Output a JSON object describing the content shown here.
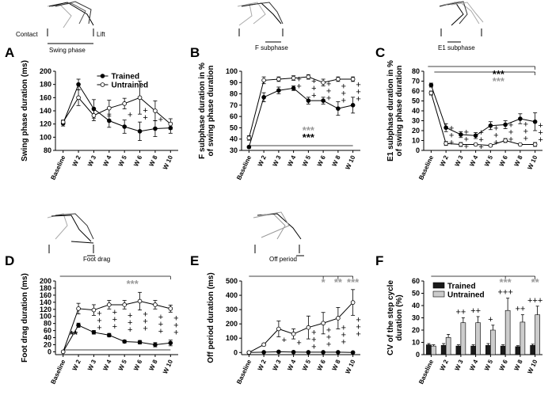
{
  "chart_data": [
    {
      "panel": "A",
      "type": "line",
      "ylabel": [
        "Swing phase duration (ms)"
      ],
      "categories": [
        "Baseline",
        "W 2",
        "W 3",
        "W 4",
        "W 5",
        "W 6",
        "W 8",
        "W 10"
      ],
      "series": [
        {
          "name": "Trained",
          "color": "#000000",
          "values": [
            121,
            180,
            143,
            125,
            116,
            109,
            113,
            114
          ],
          "errors": [
            4,
            8,
            14,
            10,
            10,
            14,
            12,
            8
          ]
        },
        {
          "name": "Untrained",
          "color": "#ffffff",
          "values": [
            123,
            160,
            133,
            144,
            151,
            160,
            140,
            120
          ],
          "errors": [
            3,
            12,
            8,
            12,
            8,
            25,
            15,
            8
          ]
        }
      ],
      "ylim": [
        80,
        200
      ],
      "yticks": [
        80,
        100,
        120,
        140,
        160,
        180,
        200
      ],
      "legend": "upper center",
      "annotations": [
        {
          "category": "W 5",
          "text": [
            "+"
          ]
        },
        {
          "category": "W 6",
          "text": [
            "+",
            "+"
          ]
        },
        {
          "category": "W 8",
          "text": [
            "+"
          ]
        }
      ],
      "significance": [],
      "illustration_labels": [
        "Contact",
        "Lift",
        "Swing phase"
      ]
    },
    {
      "panel": "B",
      "type": "line",
      "ylabel": [
        "F subphase duration in %",
        "of swing phase duration"
      ],
      "categories": [
        "Baseline",
        "W 2",
        "W 3",
        "W 4",
        "W 5",
        "W 6",
        "W 8",
        "W 10"
      ],
      "series": [
        {
          "name": "Trained",
          "color": "#000000",
          "values": [
            33,
            77,
            83,
            85,
            74,
            74,
            67,
            70
          ],
          "errors": [
            1,
            4,
            3,
            2,
            3,
            3,
            6,
            7
          ]
        },
        {
          "name": "Untrained",
          "color": "#ffffff",
          "values": [
            41,
            92,
            93,
            94,
            95,
            90,
            93,
            93
          ],
          "errors": [
            2,
            3,
            2,
            2,
            2,
            3,
            2,
            2
          ]
        }
      ],
      "ylim": [
        30,
        100
      ],
      "yticks": [
        30,
        40,
        50,
        60,
        70,
        80,
        90,
        100
      ],
      "annotations": [
        {
          "category": "W 4",
          "text": [
            "+",
            "+"
          ]
        },
        {
          "category": "W 5",
          "text": [
            "+",
            "+",
            "+"
          ]
        },
        {
          "category": "W 6",
          "text": [
            "+",
            "+",
            "+"
          ]
        },
        {
          "category": "W 8",
          "text": [
            "+",
            "+",
            "+"
          ]
        },
        {
          "category": "W 10",
          "text": [
            "+",
            "+",
            "+"
          ]
        }
      ],
      "significance": [
        {
          "text": "***",
          "color": "#999999",
          "placement": "bottom"
        },
        {
          "text": "***",
          "color": "#000000",
          "placement": "bottom"
        }
      ],
      "illustration_labels": [
        "F subphase"
      ]
    },
    {
      "panel": "C",
      "type": "line",
      "ylabel": [
        "E1 subphase duration in %",
        "of swing phase duration"
      ],
      "categories": [
        "Baseline",
        "W 2",
        "W 3",
        "W 4",
        "W 5",
        "W 6",
        "W 8",
        "W 10"
      ],
      "series": [
        {
          "name": "Trained",
          "color": "#000000",
          "values": [
            66,
            23,
            16,
            15,
            25,
            26,
            32,
            29
          ],
          "errors": [
            2,
            4,
            3,
            3,
            4,
            4,
            5,
            9
          ]
        },
        {
          "name": "Untrained",
          "color": "#ffffff",
          "values": [
            58,
            7,
            6,
            6,
            5,
            10,
            6,
            6
          ],
          "errors": [
            2,
            2,
            2,
            1,
            1,
            2,
            1,
            2
          ]
        }
      ],
      "ylim": [
        0,
        80
      ],
      "yticks": [
        0,
        10,
        20,
        30,
        40,
        50,
        60,
        70,
        80
      ],
      "annotations": [
        {
          "category": "W 2",
          "text": [
            "+",
            "+",
            "+"
          ]
        },
        {
          "category": "W 3",
          "text": [
            "+",
            "+",
            "+"
          ]
        },
        {
          "category": "W 4",
          "text": [
            "+",
            "+",
            "+"
          ]
        },
        {
          "category": "W 5",
          "text": [
            "+",
            "+",
            "+"
          ]
        },
        {
          "category": "W 6",
          "text": [
            "+",
            "+",
            "+"
          ]
        },
        {
          "category": "W 8",
          "text": [
            "+",
            "+",
            "+"
          ]
        },
        {
          "category": "W 10",
          "text": [
            "+",
            "+",
            "+"
          ]
        }
      ],
      "significance": [
        {
          "text": "***",
          "color": "#000000",
          "placement": "top"
        },
        {
          "text": "***",
          "color": "#999999",
          "placement": "top"
        }
      ],
      "illustration_labels": [
        "E1 subphase"
      ]
    },
    {
      "panel": "D",
      "type": "line",
      "ylabel": [
        "Foot drag duration (ms)"
      ],
      "categories": [
        "Baseline",
        "W 2",
        "W 3",
        "W 4",
        "W 5",
        "W 6",
        "W 8",
        "W 10"
      ],
      "series": [
        {
          "name": "Trained",
          "color": "#000000",
          "values": [
            0,
            75,
            55,
            47,
            29,
            27,
            20,
            25
          ],
          "errors": [
            0,
            6,
            5,
            5,
            4,
            5,
            6,
            8
          ]
        },
        {
          "name": "Untrained",
          "color": "#ffffff",
          "values": [
            0,
            122,
            118,
            133,
            133,
            143,
            133,
            122
          ],
          "errors": [
            0,
            15,
            15,
            12,
            12,
            25,
            12,
            10
          ]
        }
      ],
      "ylim": [
        -8,
        200
      ],
      "yticks": [
        0,
        20,
        40,
        60,
        80,
        100,
        120,
        140,
        160,
        180,
        200
      ],
      "annotations": [
        {
          "category": "W 3",
          "text": [
            "+",
            "+",
            "+"
          ]
        },
        {
          "category": "W 4",
          "text": [
            "+",
            "+",
            "+"
          ]
        },
        {
          "category": "W 5",
          "text": [
            "+",
            "+",
            "+"
          ]
        },
        {
          "category": "W 6",
          "text": [
            "+",
            "+",
            "+"
          ]
        },
        {
          "category": "W 8",
          "text": [
            "+",
            "+",
            "+"
          ]
        },
        {
          "category": "W 10",
          "text": [
            "+",
            "+",
            "+"
          ]
        }
      ],
      "significance": [
        {
          "text": "***",
          "color": "#999999",
          "placement": "top"
        },
        {
          "text": "**",
          "color": "#000000",
          "placement": "bottom"
        }
      ],
      "illustration_labels": [
        "Foot drag"
      ]
    },
    {
      "panel": "E",
      "type": "line",
      "ylabel": [
        "Off period duration (ms)"
      ],
      "categories": [
        "Baseline",
        "W 2",
        "W 3",
        "W 4",
        "W 5",
        "W 6",
        "W 8",
        "W 10"
      ],
      "series": [
        {
          "name": "Trained",
          "color": "#000000",
          "values": [
            0,
            2,
            5,
            3,
            2,
            2,
            2,
            0
          ],
          "errors": [
            0,
            1,
            2,
            2,
            1,
            1,
            1,
            1
          ]
        },
        {
          "name": "Untrained",
          "color": "#ffffff",
          "values": [
            0,
            55,
            165,
            130,
            175,
            205,
            240,
            350
          ],
          "errors": [
            0,
            8,
            55,
            35,
            80,
            75,
            75,
            90
          ]
        }
      ],
      "ylim": [
        -15,
        500
      ],
      "yticks": [
        0,
        100,
        200,
        300,
        400,
        500
      ],
      "annotations": [
        {
          "category": "W 3",
          "text": [
            "+"
          ]
        },
        {
          "category": "W 4",
          "text": [
            "+"
          ]
        },
        {
          "category": "W 5",
          "text": [
            "+",
            "+",
            "+"
          ]
        },
        {
          "category": "W 6",
          "text": [
            "+",
            "+",
            "+"
          ]
        },
        {
          "category": "W 8",
          "text": [
            "+",
            "+",
            "+"
          ]
        },
        {
          "category": "W 10",
          "text": [
            "+",
            "+",
            "+"
          ]
        }
      ],
      "significance": [
        {
          "text": "*",
          "color": "#999999",
          "placement": "top",
          "category": "W 6"
        },
        {
          "text": "**",
          "color": "#999999",
          "placement": "top",
          "category": "W 8"
        },
        {
          "text": "***",
          "color": "#999999",
          "placement": "top",
          "category": "W 10"
        }
      ],
      "illustration_labels": [
        "Off period"
      ]
    },
    {
      "panel": "F",
      "type": "bar",
      "ylabel": [
        "CV of the step cycle",
        "duration (%)"
      ],
      "categories": [
        "Baseline",
        "W 2",
        "W 3",
        "W 4",
        "W 5",
        "W 6",
        "W 8",
        "W 10"
      ],
      "series": [
        {
          "name": "Trained",
          "color": "#1a1a1a",
          "values": [
            8,
            7.5,
            7,
            7,
            7.5,
            7,
            6.5,
            7.5
          ],
          "errors": [
            1,
            1.5,
            1,
            1,
            1.5,
            1,
            0.8,
            1
          ]
        },
        {
          "name": "Untrained",
          "color": "#cccccc",
          "values": [
            7,
            14,
            26,
            26,
            20,
            36,
            26.5,
            32.5
          ],
          "errors": [
            1,
            2.5,
            4,
            5,
            4,
            10,
            6,
            7
          ]
        }
      ],
      "ylim": [
        0,
        60
      ],
      "yticks": [
        0,
        10,
        20,
        30,
        40,
        50,
        60
      ],
      "legend": "upper left",
      "annotations": [
        {
          "category": "W 3",
          "text": [
            "++"
          ]
        },
        {
          "category": "W 4",
          "text": [
            "++"
          ]
        },
        {
          "category": "W 5",
          "text": [
            "+"
          ]
        },
        {
          "category": "W 6",
          "text": [
            "+++"
          ]
        },
        {
          "category": "W 8",
          "text": [
            "++"
          ]
        },
        {
          "category": "W 10",
          "text": [
            "+++"
          ]
        }
      ],
      "significance": [
        {
          "text": "***",
          "color": "#999999",
          "placement": "top",
          "category": "W 6"
        },
        {
          "text": "**",
          "color": "#999999",
          "placement": "top",
          "category": "W 10"
        }
      ],
      "illustration_labels": []
    }
  ]
}
